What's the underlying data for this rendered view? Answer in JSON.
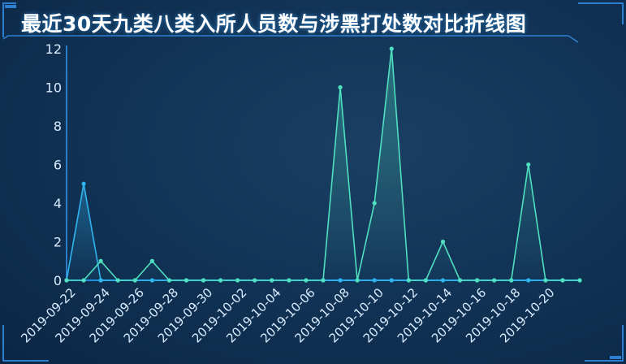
{
  "title": "最近30天九类八类入所人员数与涉黑打处数对比折线图",
  "colors": {
    "background": "#123457",
    "series_a": "#2fb6f0",
    "series_b": "#4fe0c0",
    "baseline": "#1e8fe0",
    "axis_text": "#d9ecff"
  },
  "chart_data": {
    "type": "line",
    "title": "最近30天九类八类入所人员数与涉黑打处数对比折线图",
    "xlabel": "",
    "ylabel": "",
    "ylim": [
      0,
      12
    ],
    "yticks": [
      0,
      2,
      4,
      6,
      8,
      10,
      12
    ],
    "grid": false,
    "legend": "none",
    "x": [
      "2019-09-22",
      "2019-09-23",
      "2019-09-24",
      "2019-09-25",
      "2019-09-26",
      "2019-09-27",
      "2019-09-28",
      "2019-09-29",
      "2019-09-30",
      "2019-10-01",
      "2019-10-02",
      "2019-10-03",
      "2019-10-04",
      "2019-10-05",
      "2019-10-06",
      "2019-10-07",
      "2019-10-08",
      "2019-10-09",
      "2019-10-10",
      "2019-10-11",
      "2019-10-12",
      "2019-10-13",
      "2019-10-14",
      "2019-10-15",
      "2019-10-16",
      "2019-10-17",
      "2019-10-18",
      "2019-10-19",
      "2019-10-20",
      "2019-10-21",
      "2019-10-22"
    ],
    "xtick_labels": [
      "2019-09-22",
      "2019-09-24",
      "2019-09-26",
      "2019-09-28",
      "2019-09-30",
      "2019-10-02",
      "2019-10-04",
      "2019-10-06",
      "2019-10-08",
      "2019-10-10",
      "2019-10-12",
      "2019-10-14",
      "2019-10-16",
      "2019-10-18",
      "2019-10-20"
    ],
    "series": [
      {
        "values": [
          0,
          5,
          0,
          0,
          0,
          0,
          0,
          0,
          0,
          0,
          0,
          0,
          0,
          0,
          0,
          0,
          0,
          0,
          0,
          0,
          0,
          0,
          0,
          0,
          0,
          0,
          0,
          0,
          0,
          0,
          0
        ]
      },
      {
        "values": [
          0,
          0,
          1,
          0,
          0,
          1,
          0,
          0,
          0,
          0,
          0,
          0,
          0,
          0,
          0,
          0,
          10,
          0,
          4,
          12,
          0,
          0,
          2,
          0,
          0,
          0,
          0,
          6,
          0,
          0,
          0
        ]
      }
    ]
  }
}
